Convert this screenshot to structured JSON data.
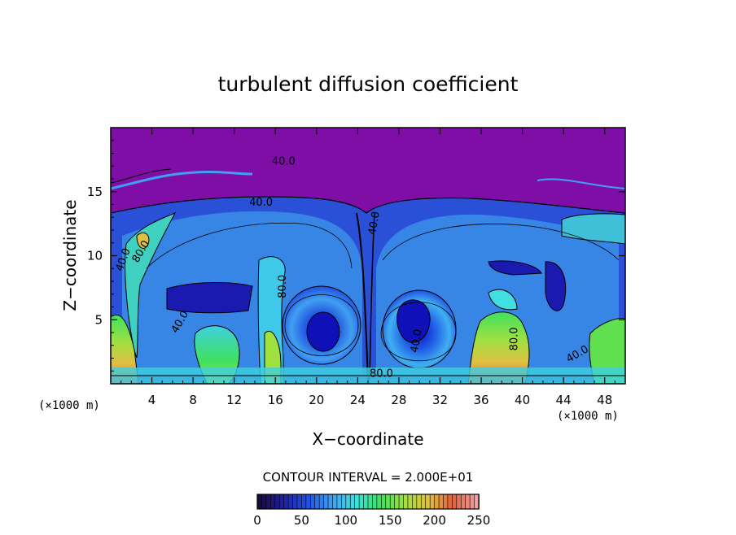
{
  "chart_data": {
    "type": "heatmap",
    "title": "turbulent diffusion coefficient",
    "xlabel": "X−coordinate",
    "ylabel": "Z−coordinate",
    "x_unit_left": "(×1000 m)",
    "x_unit_right": "(×1000 m)",
    "xlim": [
      0,
      50
    ],
    "ylim": [
      0,
      20
    ],
    "x_ticks": [
      "4",
      "8",
      "12",
      "16",
      "20",
      "24",
      "28",
      "32",
      "36",
      "40",
      "44",
      "48"
    ],
    "y_ticks": [
      "5",
      "10",
      "15"
    ],
    "contour_interval_text": "CONTOUR INTERVAL = 2.000E+01",
    "contour_labels": [
      "40.0",
      "40.0",
      "40.0",
      "40.0",
      "40.0",
      "40.0",
      "40.0",
      "80.0",
      "80.0",
      "80.0",
      "80.0"
    ],
    "colorbar": {
      "range": [
        0,
        250
      ],
      "ticks": [
        "0",
        "50",
        "100",
        "150",
        "200",
        "250"
      ],
      "colormap": [
        "#1a0a3c",
        "#2020a0",
        "#2050e0",
        "#40a0f0",
        "#40e0e0",
        "#40e060",
        "#a0e040",
        "#e0c040",
        "#e06040",
        "#f0a0a0"
      ]
    },
    "background_color": "#7e0ea6"
  }
}
